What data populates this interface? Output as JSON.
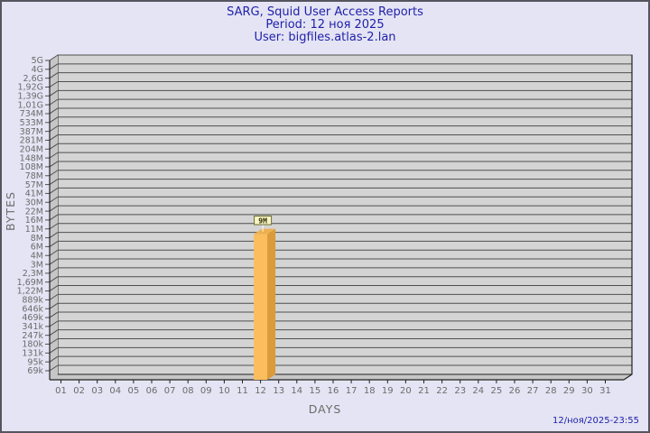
{
  "header": {
    "title": "SARG, Squid User Access Reports",
    "period": "Period: 12 ноя 2025",
    "user": "User: bigfiles.atlas-2.lan",
    "text_color": "#2121AA"
  },
  "footer": {
    "timestamp": "12/ноя/2025-23:55"
  },
  "chart_data": {
    "type": "bar",
    "title": "SARG, Squid User Access Reports",
    "subtitle": "Period: 12 ноя 2025 — User: bigfiles.atlas-2.lan",
    "xlabel": "DAYS",
    "ylabel": "BYTES",
    "x_categories": [
      "01",
      "02",
      "03",
      "04",
      "05",
      "06",
      "07",
      "08",
      "09",
      "10",
      "11",
      "12",
      "13",
      "14",
      "15",
      "16",
      "17",
      "18",
      "19",
      "20",
      "21",
      "22",
      "23",
      "24",
      "25",
      "26",
      "27",
      "28",
      "29",
      "30",
      "31"
    ],
    "y_ticks": [
      "5G",
      "4G",
      "2,6G",
      "1,92G",
      "1,39G",
      "1,01G",
      "734M",
      "533M",
      "387M",
      "281M",
      "204M",
      "148M",
      "108M",
      "78M",
      "57M",
      "41M",
      "30M",
      "22M",
      "16M",
      "11M",
      "8M",
      "6M",
      "4M",
      "3M",
      "2,3M",
      "1,69M",
      "1,22M",
      "889k",
      "646k",
      "469k",
      "341k",
      "247k",
      "180k",
      "131k",
      "95k",
      "69k"
    ],
    "series": [
      {
        "name": "bytes",
        "points": [
          {
            "day": "12",
            "value": "9M"
          }
        ]
      }
    ],
    "annotation": {
      "text": "9M",
      "above_day": "12"
    },
    "layout_hints": {
      "grid": "on",
      "style": "3d-bar",
      "bar_top_between_ticks": [
        "11M",
        "8M"
      ],
      "bar_top_tick_index": 19.6,
      "legend": "none"
    },
    "colors": {
      "bar_front": "#FCBE5C",
      "bar_side": "#DB9B3A",
      "bar_top": "#EDB04F",
      "plot_bg": "#D4D4D4",
      "wall": "#C6C6C6",
      "grid_line": "#4F4F4F",
      "axis_line": "#222222",
      "axis_text": "#6B6B6B",
      "annotation_bg": "#F4F4C8",
      "annotation_border": "#6E6E2E",
      "annotation_text": "#332F00",
      "stem": "#FFFFFF"
    }
  }
}
